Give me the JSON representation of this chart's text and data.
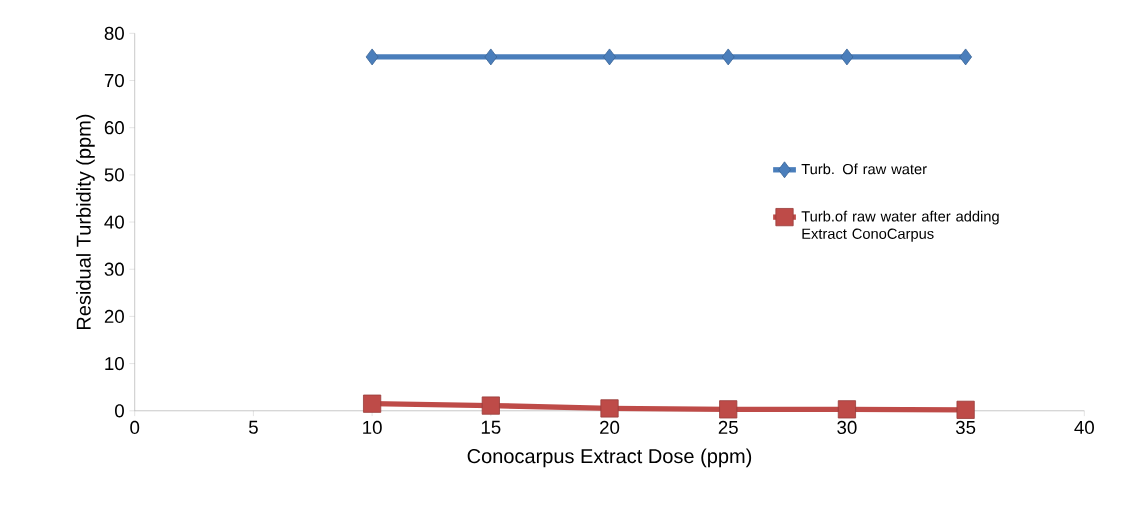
{
  "chart_data": {
    "type": "line",
    "xlabel": "Conocarpus Extract Dose (ppm)",
    "ylabel": "Residual Turbidity (ppm)",
    "x": [
      10,
      15,
      20,
      25,
      30,
      35
    ],
    "series": [
      {
        "name": "Turb. Of raw water",
        "color": "#4a7ebb",
        "marker": "diamond",
        "values": [
          75,
          75,
          75,
          75,
          75,
          75
        ]
      },
      {
        "name": "Turb.of raw water after adding Extract ConoCarpus",
        "color": "#be4b48",
        "marker": "square",
        "values": [
          1.5,
          1.1,
          0.5,
          0.3,
          0.3,
          0.2
        ]
      }
    ],
    "xlim": [
      0,
      40
    ],
    "xticks": [
      0,
      5,
      10,
      15,
      20,
      25,
      30,
      35,
      40
    ],
    "ylim": [
      0,
      80
    ],
    "yticks": [
      0,
      10,
      20,
      30,
      40,
      50,
      60,
      70,
      80
    ],
    "grid": false,
    "legend": "right",
    "line_style": "solid"
  }
}
